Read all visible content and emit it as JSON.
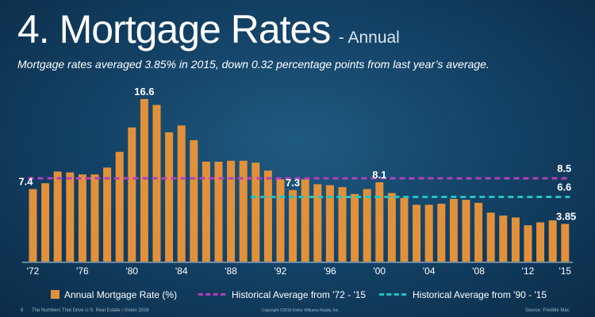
{
  "header": {
    "title": "4. Mortgage Rates",
    "subtitle": "- Annual",
    "summary": "Mortgage rates averaged 3.85% in 2015, down 0.32 percentage points from last year’s average."
  },
  "footer": {
    "page_number": "8",
    "publication": "The Numbers That Drive U.S. Real Estate | Vision 2016",
    "copyright": "Copyright ©2016 Keller Williams Realty, Inc.",
    "source": "Source: Freddie Mac"
  },
  "colors": {
    "bar": "#e2913a",
    "avg_72_15": "#b33fbf",
    "avg_90_15": "#1ec6c8"
  },
  "chart_data": {
    "type": "bar",
    "x": [
      1972,
      1973,
      1974,
      1975,
      1976,
      1977,
      1978,
      1979,
      1980,
      1981,
      1982,
      1983,
      1984,
      1985,
      1986,
      1987,
      1988,
      1989,
      1990,
      1991,
      1992,
      1993,
      1994,
      1995,
      1996,
      1997,
      1998,
      1999,
      2000,
      2001,
      2002,
      2003,
      2004,
      2005,
      2006,
      2007,
      2008,
      2009,
      2010,
      2011,
      2012,
      2013,
      2014,
      2015
    ],
    "tick_labels": [
      "'72",
      "'76",
      "'80",
      "'84",
      "'88",
      "'92",
      "'96",
      "'00",
      "'04",
      "'08",
      "'12",
      "'15"
    ],
    "tick_years": [
      1972,
      1976,
      1980,
      1984,
      1988,
      1992,
      1996,
      2000,
      2004,
      2008,
      2012,
      2015
    ],
    "series": [
      {
        "name": "Annual Mortgage Rate (%)",
        "values": [
          7.4,
          8.0,
          9.2,
          9.1,
          8.9,
          8.9,
          9.6,
          11.2,
          13.7,
          16.6,
          16.0,
          13.2,
          13.9,
          12.4,
          10.2,
          10.2,
          10.3,
          10.3,
          10.1,
          9.3,
          8.4,
          7.3,
          8.4,
          7.9,
          7.8,
          7.6,
          6.9,
          7.4,
          8.1,
          7.0,
          6.5,
          5.8,
          5.8,
          5.9,
          6.4,
          6.3,
          6.0,
          5.0,
          4.7,
          4.5,
          3.7,
          4.0,
          4.2,
          3.85
        ]
      }
    ],
    "averages": [
      {
        "name": "Historical Average from '72 - '15",
        "value": 8.5,
        "from": 1972,
        "to": 2015,
        "color_key": "avg_72_15"
      },
      {
        "name": "Historical Average from '90 - '15",
        "value": 6.6,
        "from": 1990,
        "to": 2015,
        "color_key": "avg_90_15"
      }
    ],
    "annotations": [
      {
        "year": 1972,
        "text": "7.4",
        "anchor": "bar-left"
      },
      {
        "year": 1981,
        "text": "16.6",
        "anchor": "bar-top"
      },
      {
        "year": 1993,
        "text": "7.3",
        "anchor": "bar-top"
      },
      {
        "year": 2000,
        "text": "8.1",
        "anchor": "bar-top"
      },
      {
        "year": 2015,
        "text": "8.5",
        "anchor": "line-72"
      },
      {
        "year": 2015,
        "text": "6.6",
        "anchor": "line-90"
      },
      {
        "year": 2015,
        "text": "3.85",
        "anchor": "bar-top"
      }
    ],
    "ylim": [
      0,
      17.5
    ],
    "grid": false,
    "legend_position": "bottom"
  }
}
